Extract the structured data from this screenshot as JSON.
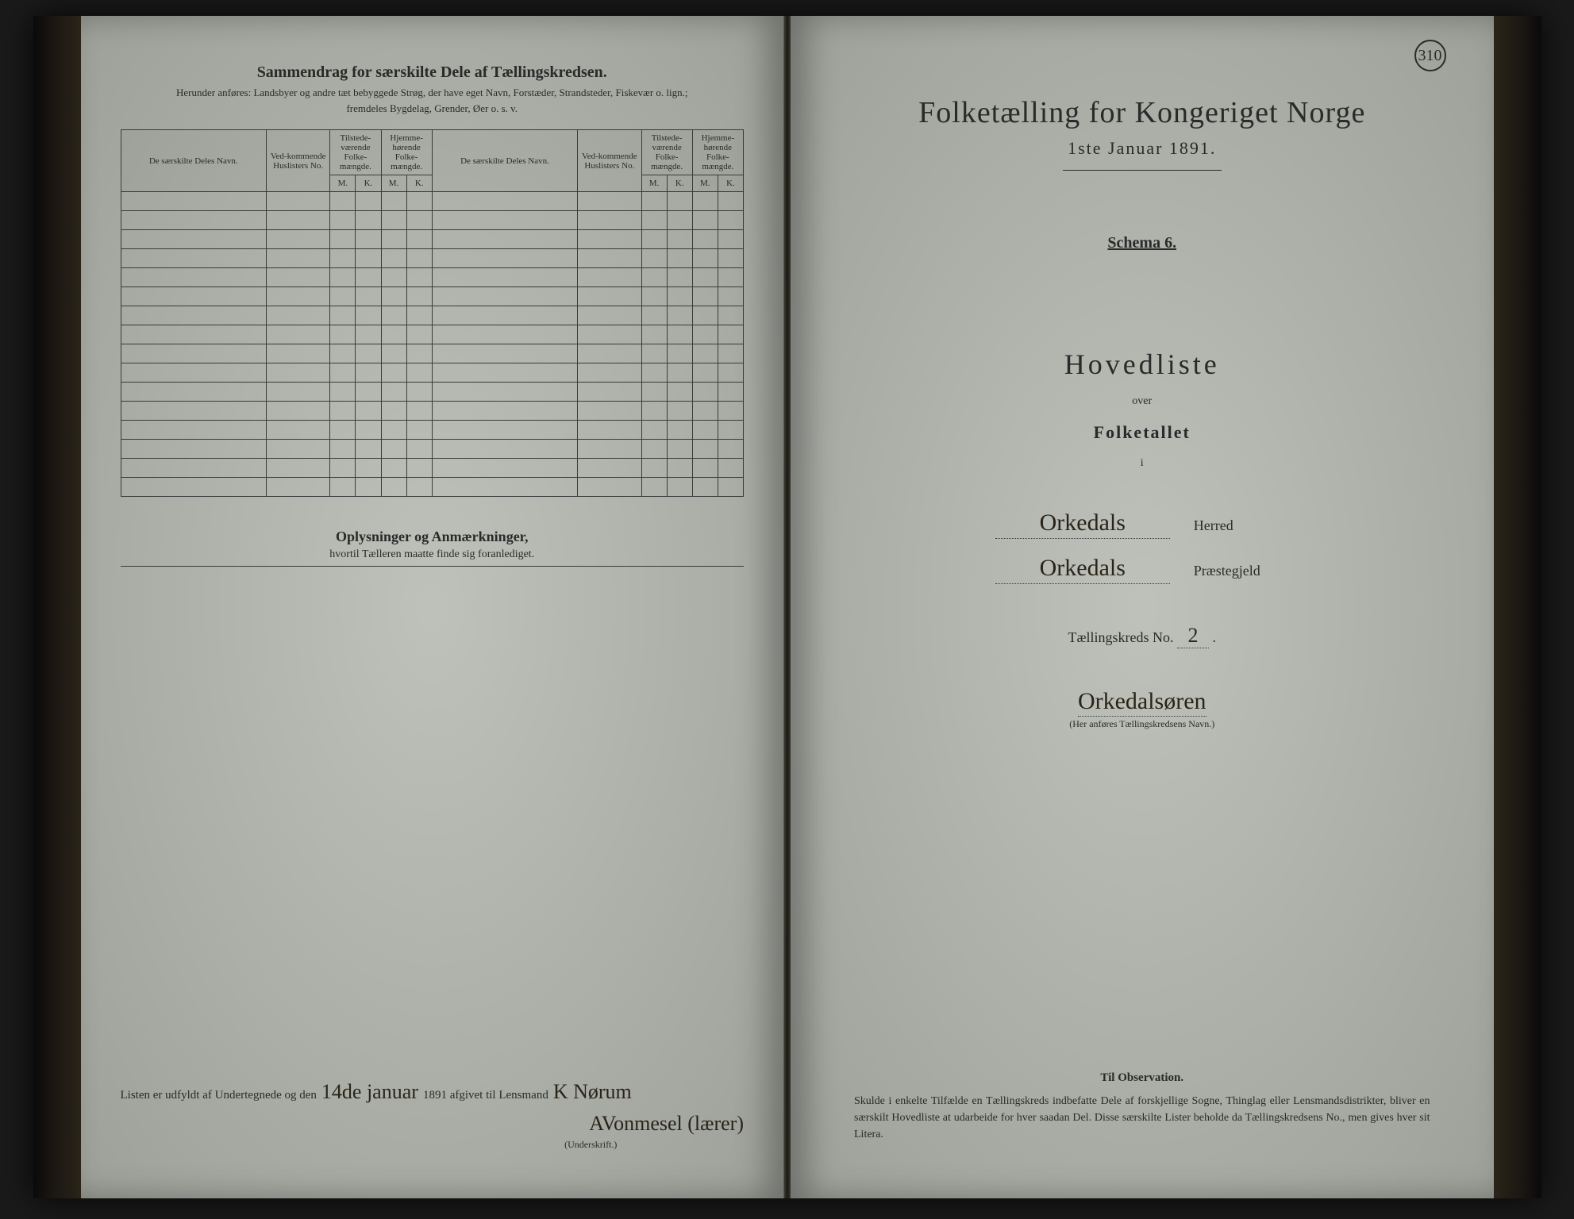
{
  "left": {
    "title": "Sammendrag for særskilte Dele af Tællingskredsen.",
    "subtitle1": "Herunder anføres: Landsbyer og andre tæt bebyggede Strøg, der have eget Navn, Forstæder, Strandsteder, Fiskevær o. lign.;",
    "subtitle2": "fremdeles Bygdelag, Grender, Øer o. s. v.",
    "headers": {
      "name": "De særskilte Deles Navn.",
      "huslister": "Ved-kommende Huslisters No.",
      "tilstede": "Tilstede-værende Folke-mængde.",
      "hjemme": "Hjemme-hørende Folke-mængde.",
      "m": "M.",
      "k": "K."
    },
    "blank_rows": 16,
    "oplysninger_title": "Oplysninger og Anmærkninger,",
    "oplysninger_sub": "hvortil Tælleren maatte finde sig foranlediget.",
    "sig_prefix": "Listen er udfyldt af Undertegnede og den",
    "sig_date": "14de januar",
    "sig_year": "1891 afgivet til Lensmand",
    "sig_name": "K Nørum",
    "sig_name2": "AVonmesel (lærer)",
    "underskrift": "(Underskrift.)"
  },
  "right": {
    "page_no": "310",
    "title": "Folketælling for Kongeriget Norge",
    "date": "1ste Januar 1891.",
    "schema": "Schema 6.",
    "hovedliste": "Hovedliste",
    "over": "over",
    "folketallet": "Folketallet",
    "i": "i",
    "herred_value": "Orkedals",
    "herred_label": "Herred",
    "prestegjeld_value": "Orkedals",
    "prestegjeld_label": "Præstegjeld",
    "kreds_label": "Tællingskreds No.",
    "kreds_no": "2",
    "kreds_name": "Orkedalsøren",
    "kreds_caption": "(Her anføres Tællingskredsens Navn.)",
    "obs_title": "Til Observation.",
    "obs_body": "Skulde i enkelte Tilfælde en Tællingskreds indbefatte Dele af forskjellige Sogne, Thinglag eller Lensmandsdistrikter, bliver en særskilt Hovedliste at udarbeide for hver saadan Del. Disse særskilte Lister beholde da Tællingskredsens No., men gives hver sit Litera."
  },
  "colors": {
    "page_bg": "#b8bbb5",
    "ink": "#2a2a2a",
    "handwriting": "#2a2418",
    "border": "#3a3a3a"
  }
}
